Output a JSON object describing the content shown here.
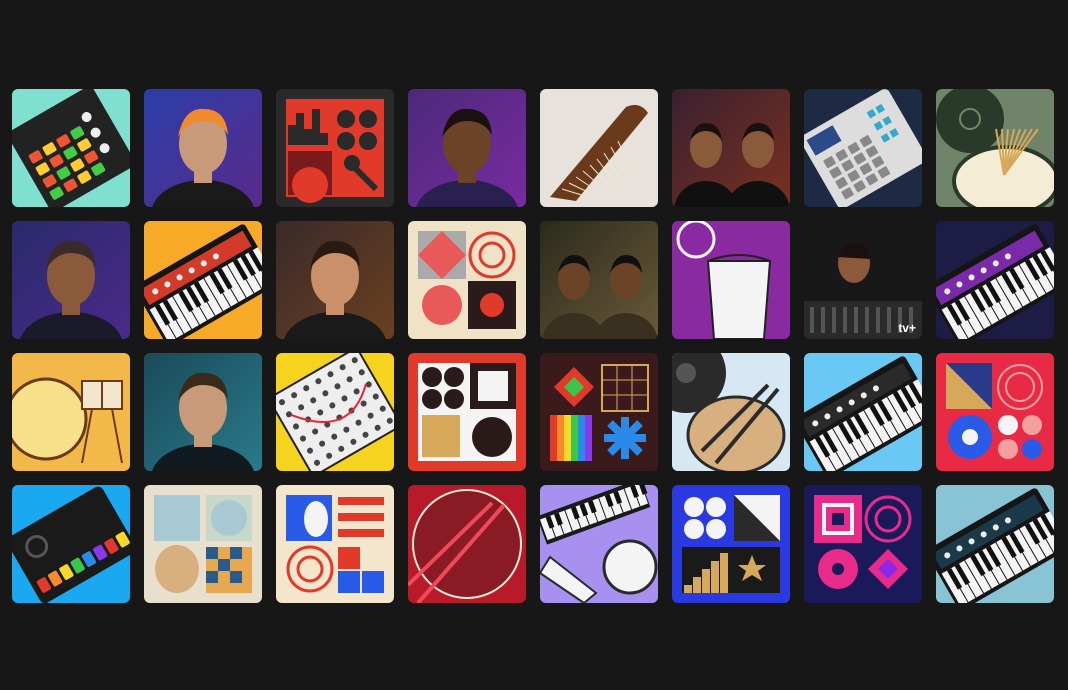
{
  "tiles": [
    {
      "name": "drum-pad-controller-tile",
      "kind": "pad",
      "bg": "#7fe0d0"
    },
    {
      "name": "artist-portrait-cap-tile",
      "kind": "portrait",
      "bg": "#2a3ea8",
      "bg2": "#5a2a8a",
      "skin": "#c99a7a",
      "hair": "#f08a2a",
      "shirt": "#1a1a1a"
    },
    {
      "name": "city-microphone-tile",
      "kind": "city",
      "bg": "#2a2a2a"
    },
    {
      "name": "artist-portrait-glasses-tile",
      "kind": "portrait",
      "bg": "#4a2a7a",
      "bg2": "#7a2aa0",
      "skin": "#6b4428",
      "hair": "#1a1010",
      "shirt": "#2a2050"
    },
    {
      "name": "guzheng-instrument-tile",
      "kind": "guzheng",
      "bg": "#e8e2dc"
    },
    {
      "name": "artist-duo-portrait-tile",
      "kind": "duo",
      "bg": "#3a2030",
      "bg2": "#7a3020",
      "skin": "#8a5a3a",
      "hair": "#1a1010",
      "shirt": "#101010"
    },
    {
      "name": "sampler-machine-tile",
      "kind": "sampler",
      "bg": "#1e2a44"
    },
    {
      "name": "drum-brushes-tile",
      "kind": "brushes",
      "bg": "#6f8468"
    },
    {
      "name": "artist-portrait-beard-tile",
      "kind": "portrait",
      "bg": "#2a2a6a",
      "bg2": "#4a2a8a",
      "skin": "#8a5a3a",
      "hair": "#3a2a2a",
      "shirt": "#1a1a2a"
    },
    {
      "name": "red-synth-keyboard-tile",
      "kind": "keys",
      "bg": "#f7a928",
      "body": "#d23a2a"
    },
    {
      "name": "artist-portrait-curly-tile",
      "kind": "portrait",
      "bg": "#3a2a2a",
      "bg2": "#6a4020",
      "skin": "#c9906a",
      "hair": "#2a1a10",
      "shirt": "#1a1a1a"
    },
    {
      "name": "geometric-pattern-tile",
      "kind": "pattern1",
      "bg": "#efe2c6"
    },
    {
      "name": "artist-duo-hat-tile",
      "kind": "duo",
      "bg": "#2a2a1a",
      "bg2": "#6a5a3a",
      "skin": "#6b4428",
      "hair": "#101010",
      "shirt": "#3a3020"
    },
    {
      "name": "conga-tambourine-tile",
      "kind": "conga",
      "bg": "#8a2aa0"
    },
    {
      "name": "artist-mixing-console-tile",
      "kind": "console",
      "bg": "#181818",
      "badge_text": "tv+"
    },
    {
      "name": "purple-synth-keyboard-tile",
      "kind": "keys",
      "bg": "#1c1c44",
      "body": "#7a2aa8"
    },
    {
      "name": "drum-kit-tile",
      "kind": "drumkit",
      "bg": "#f2b84a"
    },
    {
      "name": "artist-portrait-teal-tile",
      "kind": "portrait",
      "bg": "#1a4a5a",
      "bg2": "#2a7a8a",
      "skin": "#c99a7a",
      "hair": "#3a2a1a",
      "shirt": "#101a20"
    },
    {
      "name": "modular-synth-tile",
      "kind": "modular",
      "bg": "#f5d31e"
    },
    {
      "name": "shapes-pattern-red-tile",
      "kind": "pattern2",
      "bg": "#e23a2a"
    },
    {
      "name": "rainbow-pattern-tile",
      "kind": "rainbow",
      "bg": "#3a1a1a"
    },
    {
      "name": "vinyl-drumsticks-tile",
      "kind": "vinyl",
      "bg": "#d6e8f4"
    },
    {
      "name": "blue-synth-keyboard-tile",
      "kind": "keys",
      "bg": "#6ac8f4",
      "body": "#2a2a2a"
    },
    {
      "name": "circles-pattern-tile",
      "kind": "pattern3",
      "bg": "#e82a44"
    },
    {
      "name": "drum-machine-tile",
      "kind": "drummachine",
      "bg": "#1aa8f0"
    },
    {
      "name": "cymbals-pattern-tile",
      "kind": "cymbals",
      "bg": "#e8e0cc"
    },
    {
      "name": "flag-pattern-tile",
      "kind": "flags",
      "bg": "#f4e6cc"
    },
    {
      "name": "snare-drumsticks-tile",
      "kind": "snare",
      "bg": "#b81a2a"
    },
    {
      "name": "keyboard-guitar-tile",
      "kind": "guitar",
      "bg": "#a890f0"
    },
    {
      "name": "stairs-stars-pattern-tile",
      "kind": "stairs",
      "bg": "#2a3ae0"
    },
    {
      "name": "target-pattern-tile",
      "kind": "target",
      "bg": "#1a1a5a"
    },
    {
      "name": "teal-synth-keyboard-tile",
      "kind": "keys",
      "bg": "#88c4d4",
      "body": "#1a3a4a"
    }
  ]
}
